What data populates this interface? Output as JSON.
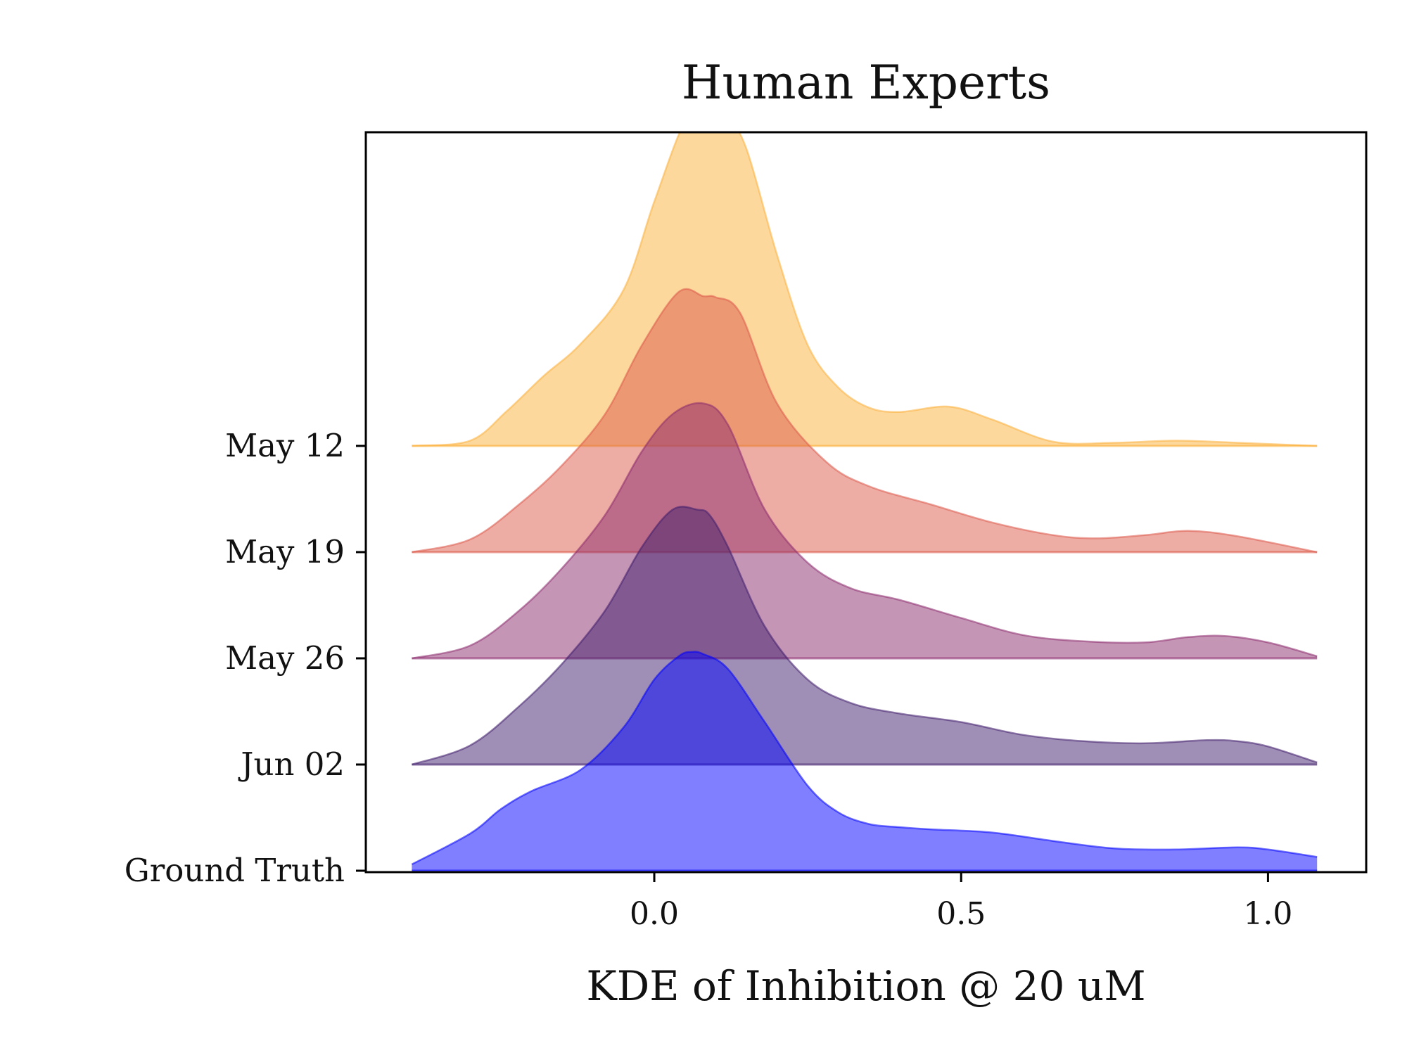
{
  "chart_data": {
    "type": "area",
    "title": "Human Experts",
    "xlabel": "KDE of Inhibition @ 20 uM",
    "ylabel": "",
    "xlim": [
      -0.47,
      1.16
    ],
    "x_ticks": [
      "0.0",
      "0.5",
      "1.0"
    ],
    "x_tick_values": [
      0.0,
      0.5,
      1.0
    ],
    "y_range": [
      0,
      7.0
    ],
    "grid": false,
    "legend": "none",
    "series": [
      {
        "name": "Ground Truth",
        "color": "#0000ff",
        "baseline": 0,
        "x": [
          -0.395,
          -0.3,
          -0.25,
          -0.2,
          -0.12,
          -0.05,
          0.0,
          0.04,
          0.06,
          0.08,
          0.12,
          0.18,
          0.25,
          0.3,
          0.35,
          0.4,
          0.45,
          0.55,
          0.65,
          0.75,
          0.85,
          0.95,
          1.0,
          1.08
        ],
        "density": [
          0.06,
          0.35,
          0.58,
          0.75,
          0.95,
          1.35,
          1.8,
          2.02,
          2.06,
          2.04,
          1.9,
          1.4,
          0.8,
          0.55,
          0.44,
          0.41,
          0.39,
          0.36,
          0.28,
          0.21,
          0.2,
          0.22,
          0.2,
          0.13
        ]
      },
      {
        "name": "Jun 02",
        "color": "#3f1d6b",
        "baseline": 1,
        "x": [
          -0.395,
          -0.3,
          -0.22,
          -0.15,
          -0.08,
          -0.02,
          0.03,
          0.07,
          0.09,
          0.12,
          0.18,
          0.25,
          0.32,
          0.4,
          0.5,
          0.6,
          0.7,
          0.8,
          0.9,
          0.95,
          1.0,
          1.08
        ],
        "density": [
          0.0,
          0.18,
          0.55,
          0.95,
          1.45,
          2.05,
          2.4,
          2.4,
          2.35,
          2.05,
          1.3,
          0.8,
          0.58,
          0.48,
          0.4,
          0.28,
          0.22,
          0.2,
          0.23,
          0.22,
          0.17,
          0.02
        ]
      },
      {
        "name": "May 26",
        "color": "#8c2b6e",
        "baseline": 2,
        "x": [
          -0.395,
          -0.3,
          -0.22,
          -0.15,
          -0.08,
          -0.02,
          0.03,
          0.08,
          0.12,
          0.18,
          0.25,
          0.32,
          0.4,
          0.5,
          0.6,
          0.7,
          0.8,
          0.87,
          0.93,
          1.0,
          1.08
        ],
        "density": [
          0.0,
          0.12,
          0.45,
          0.85,
          1.35,
          1.95,
          2.3,
          2.4,
          2.2,
          1.4,
          0.9,
          0.66,
          0.55,
          0.38,
          0.22,
          0.16,
          0.15,
          0.2,
          0.21,
          0.15,
          0.02
        ]
      },
      {
        "name": "May 19",
        "color": "#dc5a4a",
        "baseline": 3,
        "x": [
          -0.395,
          -0.3,
          -0.22,
          -0.15,
          -0.08,
          -0.02,
          0.04,
          0.08,
          0.1,
          0.14,
          0.2,
          0.28,
          0.35,
          0.45,
          0.55,
          0.65,
          0.72,
          0.8,
          0.87,
          0.95,
          1.08
        ],
        "density": [
          0.0,
          0.12,
          0.45,
          0.82,
          1.3,
          1.95,
          2.45,
          2.41,
          2.4,
          2.25,
          1.4,
          0.85,
          0.62,
          0.45,
          0.28,
          0.16,
          0.13,
          0.16,
          0.2,
          0.15,
          0.0
        ]
      },
      {
        "name": "May 12",
        "color": "#fbb13c",
        "baseline": 4,
        "x": [
          -0.395,
          -0.3,
          -0.24,
          -0.18,
          -0.12,
          -0.05,
          0.0,
          0.05,
          0.08,
          0.12,
          0.15,
          0.2,
          0.25,
          0.3,
          0.35,
          0.4,
          0.48,
          0.55,
          0.65,
          0.75,
          0.85,
          0.95,
          1.08
        ],
        "density": [
          0.0,
          0.05,
          0.33,
          0.66,
          0.96,
          1.47,
          2.3,
          3.05,
          3.05,
          3.05,
          2.8,
          1.8,
          0.95,
          0.55,
          0.36,
          0.32,
          0.37,
          0.25,
          0.04,
          0.03,
          0.05,
          0.03,
          0.0
        ]
      }
    ]
  }
}
